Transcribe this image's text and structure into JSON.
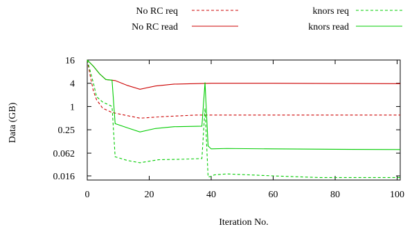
{
  "chart_data": {
    "type": "line",
    "title": "",
    "xlabel": "Iteration No.",
    "ylabel": "Data (GB)",
    "xlim": [
      0,
      101
    ],
    "ylim": [
      0.0125,
      16
    ],
    "y_scale": "log2",
    "x_ticks": [
      0,
      20,
      40,
      60,
      80,
      100
    ],
    "x_tick_labels": [
      "0",
      "20",
      "40",
      "60",
      "80",
      "100"
    ],
    "y_ticks": [
      0.016,
      0.062,
      0.25,
      1,
      4,
      16
    ],
    "y_tick_labels": [
      "0.016",
      "0.062",
      "0.25",
      "1",
      "4",
      "16"
    ],
    "grid": false,
    "legend_position": "top",
    "series": [
      {
        "name": "No RC req",
        "color": "#cc0000",
        "dash": "dashed",
        "points": [
          [
            0,
            16
          ],
          [
            1,
            6
          ],
          [
            2,
            2.5
          ],
          [
            3,
            1.5
          ],
          [
            5,
            0.9
          ],
          [
            8,
            0.7
          ],
          [
            12,
            0.6
          ],
          [
            17,
            0.5
          ],
          [
            25,
            0.55
          ],
          [
            35,
            0.6
          ],
          [
            50,
            0.6
          ],
          [
            70,
            0.6
          ],
          [
            101,
            0.6
          ]
        ]
      },
      {
        "name": "No RC read",
        "color": "#cc0000",
        "dash": "solid",
        "points": [
          [
            0,
            16
          ],
          [
            2,
            11
          ],
          [
            4,
            7
          ],
          [
            6,
            5
          ],
          [
            9,
            4.7
          ],
          [
            13,
            3.5
          ],
          [
            17,
            2.8
          ],
          [
            22,
            3.4
          ],
          [
            28,
            3.8
          ],
          [
            40,
            4
          ],
          [
            60,
            4
          ],
          [
            80,
            3.95
          ],
          [
            101,
            3.9
          ]
        ]
      },
      {
        "name": "knors req",
        "color": "#00cc00",
        "dash": "dashed",
        "points": [
          [
            0,
            16
          ],
          [
            1,
            8
          ],
          [
            2,
            4
          ],
          [
            3,
            1.8
          ],
          [
            5,
            1.3
          ],
          [
            7,
            1.1
          ],
          [
            8,
            1.0
          ],
          [
            9,
            0.05
          ],
          [
            13,
            0.04
          ],
          [
            17,
            0.035
          ],
          [
            23,
            0.042
          ],
          [
            30,
            0.043
          ],
          [
            37,
            0.045
          ],
          [
            38,
            0.9
          ],
          [
            39,
            0.015
          ],
          [
            40,
            0.0155
          ],
          [
            41,
            0.017
          ],
          [
            45,
            0.018
          ],
          [
            60,
            0.016
          ],
          [
            75,
            0.0145
          ],
          [
            101,
            0.0145
          ]
        ]
      },
      {
        "name": "knors read",
        "color": "#00cc00",
        "dash": "solid",
        "points": [
          [
            0,
            16
          ],
          [
            2,
            11
          ],
          [
            4,
            7
          ],
          [
            6,
            5
          ],
          [
            8,
            4.8
          ],
          [
            9,
            0.36
          ],
          [
            13,
            0.28
          ],
          [
            17,
            0.22
          ],
          [
            22,
            0.27
          ],
          [
            28,
            0.3
          ],
          [
            37,
            0.31
          ],
          [
            38,
            4.2
          ],
          [
            39,
            0.095
          ],
          [
            40,
            0.08
          ],
          [
            45,
            0.082
          ],
          [
            60,
            0.08
          ],
          [
            80,
            0.078
          ],
          [
            101,
            0.077
          ]
        ]
      }
    ]
  }
}
